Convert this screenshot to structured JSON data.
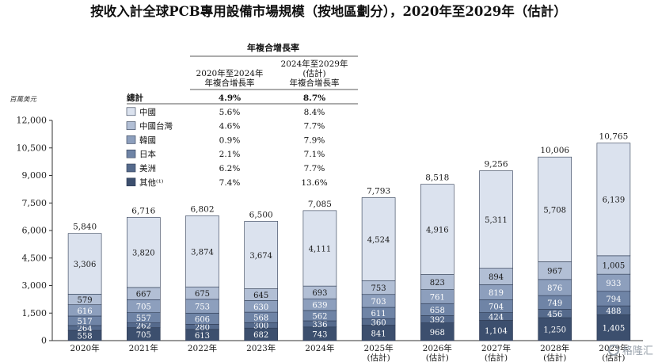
{
  "chart_data": {
    "type": "stacked-bar",
    "title": "按收入計全球PCB專用設備市場規模（按地區劃分），2020年至2029年（估計）",
    "ylabel": "百萬美元",
    "ylim": [
      0,
      12000
    ],
    "yticks": [
      "0",
      "1,500",
      "3,000",
      "4,500",
      "6,000",
      "7,500",
      "9,000",
      "10,500",
      "12,000"
    ],
    "ytick_values": [
      0,
      1500,
      3000,
      4500,
      6000,
      7500,
      9000,
      10500,
      12000
    ],
    "categories": [
      "2020年",
      "2021年",
      "2022年",
      "2023年",
      "2024年",
      "2025年",
      "2026年",
      "2027年",
      "2028年",
      "2029年"
    ],
    "estimate_note": "(估計)",
    "estimate_from_index": 5,
    "series": [
      {
        "name": "其他",
        "legend": "其他⁽¹⁾",
        "color": "#3c4f6e",
        "values": [
          558,
          705,
          613,
          682,
          743,
          841,
          968,
          1104,
          1250,
          1405
        ],
        "labels": [
          "558",
          "705",
          "613",
          "682",
          "743",
          "841",
          "968",
          "1,104",
          "1,250",
          "1,405"
        ]
      },
      {
        "name": "美洲",
        "legend": "美洲",
        "color": "#556a8c",
        "values": [
          264,
          262,
          280,
          300,
          336,
          360,
          392,
          424,
          456,
          488
        ],
        "labels": [
          "264",
          "262",
          "280",
          "300",
          "336",
          "360",
          "392",
          "424",
          "456",
          "488"
        ]
      },
      {
        "name": "日本",
        "legend": "日本",
        "color": "#6f84a6",
        "values": [
          517,
          557,
          606,
          568,
          562,
          611,
          658,
          704,
          749,
          794
        ],
        "labels": [
          "517",
          "557",
          "606",
          "568",
          "562",
          "611",
          "658",
          "704",
          "749",
          "794"
        ]
      },
      {
        "name": "韓國",
        "legend": "韓國",
        "color": "#8d9fbd",
        "values": [
          616,
          705,
          753,
          630,
          639,
          703,
          761,
          819,
          876,
          933
        ],
        "labels": [
          "616",
          "705",
          "753",
          "630",
          "639",
          "703",
          "761",
          "819",
          "876",
          "933"
        ]
      },
      {
        "name": "中國台灣",
        "legend": "中國台灣",
        "color": "#b2bfd5",
        "values": [
          579,
          667,
          675,
          645,
          693,
          753,
          823,
          894,
          967,
          1005
        ],
        "labels": [
          "579",
          "667",
          "675",
          "645",
          "693",
          "753",
          "823",
          "894",
          "967",
          "1,005"
        ]
      },
      {
        "name": "中國",
        "legend": "中國",
        "color": "#dbe2ee",
        "values": [
          3306,
          3820,
          3874,
          3674,
          4111,
          4524,
          4916,
          5311,
          5708,
          6139
        ],
        "labels": [
          "3,306",
          "3,820",
          "3,874",
          "3,674",
          "4,111",
          "4,524",
          "4,916",
          "5,311",
          "5,708",
          "6,139"
        ]
      }
    ],
    "totals": [
      5840,
      6716,
      6802,
      6500,
      7085,
      7793,
      8518,
      9256,
      10006,
      10765
    ],
    "total_labels": [
      "5,840",
      "6,716",
      "6,802",
      "6,500",
      "7,085",
      "7,793",
      "8,518",
      "9,256",
      "10,006",
      "10,765"
    ],
    "cagr_table": {
      "header": "年複合增長率",
      "col1": [
        "2020年至2024年",
        "年複合增長率"
      ],
      "col2": [
        "2024年至2029年",
        "(估計)",
        "年複合增長率"
      ],
      "rows": [
        {
          "name": "總計",
          "c1": "4.9%",
          "c2": "8.7%",
          "bold": true
        },
        {
          "name": "中國",
          "c1": "5.6%",
          "c2": "8.4%",
          "color": "#dbe2ee"
        },
        {
          "name": "中國台灣",
          "c1": "4.6%",
          "c2": "7.7%",
          "color": "#b2bfd5"
        },
        {
          "name": "韓國",
          "c1": "0.9%",
          "c2": "7.9%",
          "color": "#8d9fbd"
        },
        {
          "name": "日本",
          "c1": "2.1%",
          "c2": "7.1%",
          "color": "#6f84a6"
        },
        {
          "name": "美洲",
          "c1": "6.2%",
          "c2": "7.7%",
          "color": "#556a8c"
        },
        {
          "name": "其他⁽¹⁾",
          "c1": "7.4%",
          "c2": "13.6%",
          "color": "#3c4f6e"
        }
      ]
    }
  },
  "watermark": "格隆汇"
}
